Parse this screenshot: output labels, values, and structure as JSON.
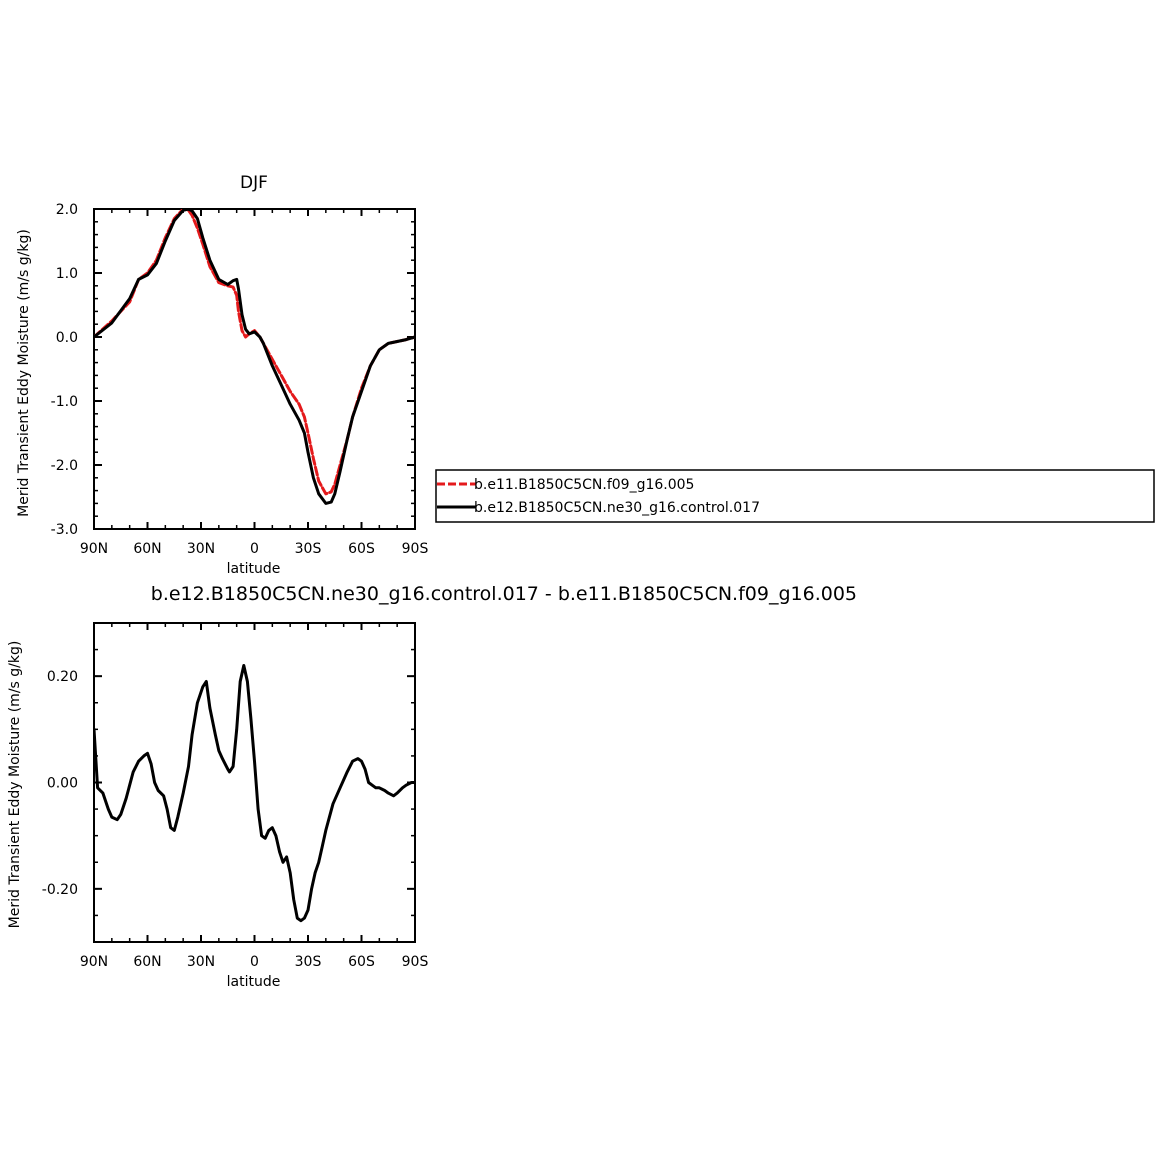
{
  "chart_data": [
    {
      "type": "line",
      "title": "DJF",
      "xlabel": "latitude",
      "ylabel": "Merid Transient Eddy Moisture (m/s g/kg)",
      "xlim": [
        90,
        -90
      ],
      "ylim": [
        -3.0,
        2.0
      ],
      "x_ticks": [
        90,
        60,
        30,
        0,
        -30,
        -60,
        -90
      ],
      "x_tick_labels": [
        "90N",
        "60N",
        "30N",
        "0",
        "30S",
        "60S",
        "90S"
      ],
      "y_ticks": [
        -3.0,
        -2.0,
        -1.0,
        0.0,
        1.0,
        2.0
      ],
      "y_tick_labels": [
        "-3.0",
        "-2.0",
        "-1.0",
        "0.0",
        "1.0",
        "2.0"
      ],
      "legend": {
        "placement": "right",
        "entries": [
          "b.e11.B1850C5CN.f09_g16.005",
          "b.e12.B1850C5CN.ne30_g16.control.017"
        ]
      },
      "series": [
        {
          "name": "b.e11.B1850C5CN.f09_g16.005",
          "color": "#e41a1c",
          "dash": true,
          "x": [
            90,
            80,
            70,
            65,
            60,
            55,
            50,
            45,
            40,
            37,
            35,
            32,
            29,
            25,
            20,
            15,
            12,
            10,
            9,
            7,
            5,
            3,
            0,
            -3,
            -5,
            -10,
            -15,
            -20,
            -25,
            -28,
            -30,
            -33,
            -36,
            -40,
            -43,
            -45,
            -48,
            -52,
            -55,
            -60,
            -65,
            -70,
            -75,
            -80,
            -85,
            -90
          ],
          "y": [
            0.0,
            0.25,
            0.55,
            0.9,
            1.0,
            1.2,
            1.55,
            1.85,
            2.0,
            1.98,
            1.9,
            1.7,
            1.45,
            1.1,
            0.85,
            0.8,
            0.78,
            0.65,
            0.4,
            0.1,
            0.0,
            0.05,
            0.1,
            0.0,
            -0.1,
            -0.35,
            -0.6,
            -0.85,
            -1.05,
            -1.25,
            -1.5,
            -1.9,
            -2.25,
            -2.45,
            -2.42,
            -2.3,
            -2.0,
            -1.6,
            -1.25,
            -0.8,
            -0.45,
            -0.2,
            -0.1,
            -0.07,
            -0.04,
            0.0
          ]
        },
        {
          "name": "b.e12.B1850C5CN.ne30_g16.control.017",
          "color": "#000000",
          "dash": false,
          "x": [
            90,
            80,
            70,
            65,
            60,
            55,
            50,
            45,
            40,
            37,
            35,
            32,
            29,
            25,
            20,
            15,
            12,
            10,
            9,
            7,
            5,
            3,
            0,
            -3,
            -5,
            -10,
            -15,
            -20,
            -25,
            -28,
            -30,
            -33,
            -36,
            -40,
            -43,
            -45,
            -48,
            -52,
            -55,
            -60,
            -65,
            -70,
            -75,
            -80,
            -85,
            -90
          ],
          "y": [
            0.0,
            0.22,
            0.6,
            0.9,
            0.97,
            1.15,
            1.5,
            1.82,
            1.98,
            2.0,
            1.97,
            1.85,
            1.55,
            1.2,
            0.9,
            0.82,
            0.88,
            0.9,
            0.75,
            0.35,
            0.12,
            0.05,
            0.08,
            0.0,
            -0.1,
            -0.45,
            -0.75,
            -1.05,
            -1.3,
            -1.5,
            -1.8,
            -2.2,
            -2.45,
            -2.6,
            -2.58,
            -2.45,
            -2.1,
            -1.6,
            -1.25,
            -0.85,
            -0.45,
            -0.2,
            -0.1,
            -0.07,
            -0.04,
            0.0
          ]
        }
      ]
    },
    {
      "type": "line",
      "title": "b.e12.B1850C5CN.ne30_g16.control.017 - b.e11.B1850C5CN.f09_g16.005",
      "xlabel": "latitude",
      "ylabel": "Merid Transient Eddy Moisture (m/s g/kg)",
      "xlim": [
        90,
        -90
      ],
      "ylim": [
        -0.3,
        0.3
      ],
      "x_ticks": [
        90,
        60,
        30,
        0,
        -30,
        -60,
        -90
      ],
      "x_tick_labels": [
        "90N",
        "60N",
        "30N",
        "0",
        "30S",
        "60S",
        "90S"
      ],
      "y_ticks": [
        -0.2,
        0.0,
        0.2
      ],
      "y_tick_labels": [
        "-0.20",
        "0.00",
        "0.20"
      ],
      "series": [
        {
          "color": "#000000",
          "dash": false,
          "x": [
            90,
            88,
            85,
            82,
            80,
            77,
            75,
            72,
            68,
            65,
            62,
            60,
            58,
            56,
            54,
            51,
            49,
            47,
            45,
            43,
            40,
            37,
            35,
            32,
            29,
            27,
            25,
            22,
            20,
            18,
            15,
            14,
            12,
            10,
            8,
            6,
            4,
            2,
            0,
            -2,
            -4,
            -6,
            -8,
            -10,
            -12,
            -14,
            -16,
            -18,
            -20,
            -22,
            -24,
            -26,
            -28,
            -30,
            -32,
            -34,
            -36,
            -38,
            -40,
            -44,
            -48,
            -50,
            -52,
            -55,
            -58,
            -60,
            -62,
            -64,
            -66,
            -68,
            -70,
            -73,
            -75,
            -78,
            -80,
            -83,
            -85,
            -88,
            -90
          ],
          "y": [
            0.1,
            -0.01,
            -0.02,
            -0.05,
            -0.065,
            -0.07,
            -0.06,
            -0.03,
            0.02,
            0.04,
            0.05,
            0.055,
            0.035,
            0.0,
            -0.015,
            -0.025,
            -0.05,
            -0.085,
            -0.09,
            -0.065,
            -0.02,
            0.03,
            0.09,
            0.15,
            0.18,
            0.19,
            0.14,
            0.09,
            0.06,
            0.045,
            0.025,
            0.02,
            0.03,
            0.1,
            0.19,
            0.22,
            0.19,
            0.12,
            0.04,
            -0.05,
            -0.1,
            -0.105,
            -0.09,
            -0.085,
            -0.1,
            -0.13,
            -0.15,
            -0.14,
            -0.17,
            -0.22,
            -0.255,
            -0.26,
            -0.255,
            -0.24,
            -0.2,
            -0.17,
            -0.15,
            -0.12,
            -0.09,
            -0.04,
            -0.01,
            0.005,
            0.02,
            0.04,
            0.045,
            0.04,
            0.025,
            0.0,
            -0.005,
            -0.01,
            -0.01,
            -0.015,
            -0.02,
            -0.025,
            -0.02,
            -0.01,
            -0.005,
            0.0,
            0.0
          ]
        }
      ]
    }
  ]
}
